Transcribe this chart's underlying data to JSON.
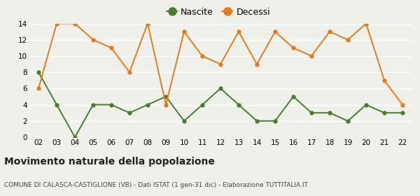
{
  "years": [
    "02",
    "03",
    "04",
    "05",
    "06",
    "07",
    "08",
    "09",
    "10",
    "11",
    "12",
    "13",
    "14",
    "15",
    "16",
    "17",
    "18",
    "19",
    "20",
    "21",
    "22"
  ],
  "nascite": [
    8,
    4,
    0,
    4,
    4,
    3,
    4,
    5,
    2,
    4,
    6,
    4,
    2,
    2,
    5,
    3,
    3,
    2,
    4,
    3,
    3
  ],
  "decessi": [
    6,
    14,
    14,
    12,
    11,
    8,
    14,
    4,
    13,
    10,
    9,
    13,
    9,
    13,
    11,
    10,
    13,
    12,
    14,
    7,
    4
  ],
  "nascite_color": "#4a7c2f",
  "decessi_color": "#e07b20",
  "title": "Movimento naturale della popolazione",
  "subtitle": "COMUNE DI CALASCA-CASTIGLIONE (VB) - Dati ISTAT (1 gen-31 dic) - Elaborazione TUTTITALIA.IT",
  "ylim": [
    0,
    14
  ],
  "yticks": [
    0,
    2,
    4,
    6,
    8,
    10,
    12,
    14
  ],
  "background_color": "#f0f0eb",
  "grid_color": "#ffffff",
  "legend_nascite": "Nascite",
  "legend_decessi": "Decessi"
}
